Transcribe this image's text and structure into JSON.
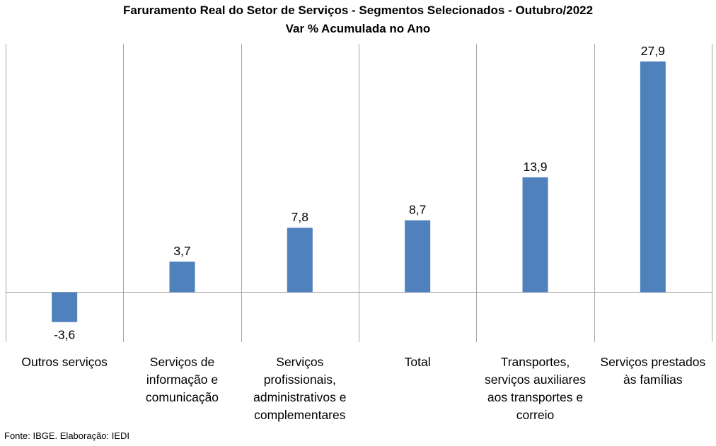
{
  "chart_data": {
    "type": "bar",
    "title": "Faruramento  Real do Setor de Serviços - Segmentos Selecionados - Outubro/2022",
    "subtitle": "Var % Acumulada no Ano",
    "categories": [
      "Outros serviços",
      "Serviços de informação e comunicação",
      "Serviços profissionais, administrativos e complementares",
      "Total",
      "Transportes, serviços auxiliares aos transportes e correio",
      "Serviços prestados às famílias"
    ],
    "category_lines": [
      [
        "Outros serviços"
      ],
      [
        "Serviços de",
        "informação e",
        "comunicação"
      ],
      [
        "Serviços",
        "profissionais,",
        "administrativos e",
        "complementares"
      ],
      [
        "Total"
      ],
      [
        "Transportes,",
        "serviços auxiliares",
        "aos transportes e",
        "correio"
      ],
      [
        "Serviços prestados",
        "às famílias"
      ]
    ],
    "values": [
      -3.6,
      3.7,
      7.8,
      8.7,
      13.9,
      27.9
    ],
    "value_labels": [
      "-3,6",
      "3,7",
      "7,8",
      "8,7",
      "13,9",
      "27,9"
    ],
    "ylim": [
      -6,
      30
    ],
    "bar_color": "#4f81bd",
    "grid": false,
    "legend": "none",
    "xlabel": "",
    "ylabel": ""
  },
  "footer": "Fonte: IBGE. Elaboração: IEDI"
}
